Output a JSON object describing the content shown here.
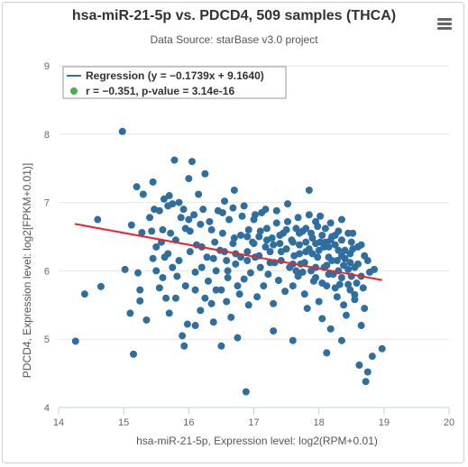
{
  "title": "hsa-miR-21-5p vs. PDCD4, 509 samples (THCA)",
  "subtitle": "Data Source: starBase v3.0 project",
  "menu_icon": "hamburger-menu-icon",
  "chart_data": {
    "type": "scatter",
    "title": "hsa-miR-21-5p vs. PDCD4, 509 samples (THCA)",
    "subtitle": "Data Source: starBase v3.0 project",
    "xlabel": "hsa-miR-21-5p, Expression level: log2(RPM+0.01)",
    "ylabel": "PDCD4, Expression level: log2[FPKM+0.01)]",
    "xlim": [
      14,
      20
    ],
    "ylim": [
      4,
      9
    ],
    "xticks": [
      "14",
      "15",
      "16",
      "17",
      "18",
      "19",
      "20"
    ],
    "yticks": [
      "4",
      "5",
      "6",
      "7",
      "8",
      "9"
    ],
    "grid": "horizontal",
    "legend_position": "top-left",
    "legend": {
      "regression_label": "Regression (y = −0.1739x + 9.1640)",
      "stats_label": "r = −0.351, p-value = 3.14e-16"
    },
    "colors": {
      "points": "#2f6f9f",
      "regression": "#e8262b",
      "stats_marker": "#4caf50"
    },
    "regression": {
      "slope": -0.1739,
      "intercept": 9.164,
      "x_range": [
        14.25,
        18.97
      ]
    },
    "points": [
      [
        14.26,
        4.97
      ],
      [
        14.4,
        5.66
      ],
      [
        14.6,
        6.75
      ],
      [
        14.65,
        5.77
      ],
      [
        14.98,
        8.04
      ],
      [
        15.1,
        5.38
      ],
      [
        15.15,
        4.78
      ],
      [
        15.02,
        6.02
      ],
      [
        15.12,
        6.67
      ],
      [
        15.2,
        7.23
      ],
      [
        15.3,
        7.12
      ],
      [
        15.22,
        5.97
      ],
      [
        15.25,
        5.72
      ],
      [
        15.25,
        5.56
      ],
      [
        15.28,
        6.56
      ],
      [
        15.4,
        6.78
      ],
      [
        15.43,
        6.58
      ],
      [
        15.45,
        7.3
      ],
      [
        15.47,
        6.9
      ],
      [
        15.5,
        6.0
      ],
      [
        15.55,
        5.75
      ],
      [
        15.58,
        6.42
      ],
      [
        15.6,
        6.6
      ],
      [
        15.63,
        6.2
      ],
      [
        15.65,
        5.6
      ],
      [
        15.68,
        6.95
      ],
      [
        15.7,
        7.1
      ],
      [
        15.72,
        6.55
      ],
      [
        15.75,
        6.05
      ],
      [
        15.78,
        7.62
      ],
      [
        15.8,
        6.45
      ],
      [
        15.82,
        5.92
      ],
      [
        15.85,
        7.0
      ],
      [
        15.88,
        6.78
      ],
      [
        15.9,
        5.05
      ],
      [
        15.93,
        4.9
      ],
      [
        15.95,
        6.62
      ],
      [
        15.98,
        5.22
      ],
      [
        16.0,
        7.35
      ],
      [
        16.02,
        6.58
      ],
      [
        16.05,
        7.6
      ],
      [
        16.08,
        6.82
      ],
      [
        16.1,
        5.72
      ],
      [
        16.12,
        6.38
      ],
      [
        16.15,
        7.12
      ],
      [
        16.18,
        5.42
      ],
      [
        16.2,
        6.05
      ],
      [
        16.22,
        6.9
      ],
      [
        16.25,
        7.42
      ],
      [
        16.28,
        6.2
      ],
      [
        16.3,
        5.85
      ],
      [
        16.32,
        6.72
      ],
      [
        16.35,
        5.52
      ],
      [
        16.38,
        5.25
      ],
      [
        16.4,
        6.42
      ],
      [
        16.42,
        6.0
      ],
      [
        16.45,
        6.88
      ],
      [
        16.48,
        6.3
      ],
      [
        16.5,
        5.72
      ],
      [
        16.52,
        6.55
      ],
      [
        16.55,
        7.02
      ],
      [
        16.58,
        6.15
      ],
      [
        16.6,
        5.9
      ],
      [
        16.62,
        6.75
      ],
      [
        16.65,
        5.32
      ],
      [
        16.68,
        6.4
      ],
      [
        16.7,
        7.18
      ],
      [
        16.72,
        6.1
      ],
      [
        16.75,
        5.02
      ],
      [
        16.78,
        5.66
      ],
      [
        16.8,
        6.52
      ],
      [
        16.82,
        6.8
      ],
      [
        16.85,
        5.88
      ],
      [
        16.88,
        4.23
      ],
      [
        16.9,
        6.28
      ],
      [
        16.92,
        6.6
      ],
      [
        16.95,
        5.97
      ],
      [
        16.98,
        6.42
      ],
      [
        17.0,
        6.75
      ],
      [
        17.02,
        6.2
      ],
      [
        17.05,
        5.62
      ],
      [
        17.08,
        6.5
      ],
      [
        17.1,
        6.05
      ],
      [
        17.12,
        6.85
      ],
      [
        17.15,
        5.78
      ],
      [
        17.18,
        6.35
      ],
      [
        17.2,
        6.62
      ],
      [
        17.22,
        5.95
      ],
      [
        17.25,
        6.28
      ],
      [
        17.28,
        6.48
      ],
      [
        17.3,
        5.52
      ],
      [
        17.32,
        6.12
      ],
      [
        17.35,
        6.7
      ],
      [
        17.38,
        5.86
      ],
      [
        17.4,
        6.4
      ],
      [
        17.42,
        6.15
      ],
      [
        17.45,
        6.55
      ],
      [
        17.48,
        5.7
      ],
      [
        17.5,
        6.32
      ],
      [
        17.52,
        6.98
      ],
      [
        17.55,
        6.05
      ],
      [
        17.58,
        6.45
      ],
      [
        17.6,
        5.78
      ],
      [
        17.62,
        6.22
      ],
      [
        17.65,
        6.62
      ],
      [
        17.68,
        5.92
      ],
      [
        17.7,
        6.38
      ],
      [
        17.72,
        6.1
      ],
      [
        17.75,
        6.58
      ],
      [
        17.78,
        5.66
      ],
      [
        17.8,
        6.28
      ],
      [
        17.82,
        5.45
      ],
      [
        17.85,
        7.18
      ],
      [
        17.88,
        6.0
      ],
      [
        17.9,
        6.48
      ],
      [
        17.92,
        5.85
      ],
      [
        17.95,
        6.72
      ],
      [
        17.98,
        6.2
      ],
      [
        18.0,
        5.55
      ],
      [
        18.02,
        6.42
      ],
      [
        18.05,
        5.3
      ],
      [
        18.08,
        6.05
      ],
      [
        18.1,
        6.62
      ],
      [
        18.12,
        5.78
      ],
      [
        18.15,
        6.35
      ],
      [
        18.18,
        5.15
      ],
      [
        18.2,
        6.15
      ],
      [
        18.22,
        5.95
      ],
      [
        18.25,
        6.52
      ],
      [
        18.28,
        5.62
      ],
      [
        18.3,
        6.3
      ],
      [
        18.32,
        5.8
      ],
      [
        18.35,
        6.45
      ],
      [
        18.38,
        5.5
      ],
      [
        18.4,
        6.18
      ],
      [
        18.42,
        5.35
      ],
      [
        18.45,
        6.02
      ],
      [
        18.48,
        5.72
      ],
      [
        18.5,
        5.92
      ],
      [
        18.52,
        6.32
      ],
      [
        18.55,
        5.58
      ],
      [
        18.58,
        5.82
      ],
      [
        18.6,
        6.1
      ],
      [
        18.62,
        4.62
      ],
      [
        18.65,
        5.2
      ],
      [
        18.68,
        5.75
      ],
      [
        18.7,
        5.45
      ],
      [
        18.72,
        4.38
      ],
      [
        18.75,
        4.52
      ],
      [
        18.78,
        5.98
      ],
      [
        18.82,
        4.75
      ],
      [
        18.97,
        4.86
      ],
      [
        18.12,
        4.8
      ],
      [
        17.3,
        5.12
      ],
      [
        16.5,
        4.9
      ],
      [
        15.7,
        5.38
      ],
      [
        15.35,
        5.28
      ],
      [
        16.1,
        5.2
      ],
      [
        17.6,
        4.98
      ],
      [
        18.35,
        4.98
      ],
      [
        15.55,
        6.88
      ],
      [
        15.62,
        7.05
      ],
      [
        15.75,
        6.98
      ],
      [
        15.92,
        6.9
      ],
      [
        16.0,
        6.75
      ],
      [
        16.18,
        6.68
      ],
      [
        16.35,
        6.6
      ],
      [
        16.52,
        6.85
      ],
      [
        16.68,
        6.92
      ],
      [
        16.85,
        6.95
      ],
      [
        17.02,
        6.82
      ],
      [
        17.18,
        6.9
      ],
      [
        17.35,
        6.88
      ],
      [
        17.52,
        6.72
      ],
      [
        17.68,
        6.78
      ],
      [
        17.85,
        6.82
      ],
      [
        18.02,
        6.8
      ],
      [
        18.18,
        6.7
      ],
      [
        18.35,
        6.75
      ],
      [
        18.52,
        6.55
      ],
      [
        15.5,
        6.35
      ],
      [
        15.68,
        6.25
      ],
      [
        15.85,
        6.15
      ],
      [
        16.02,
        6.28
      ],
      [
        16.2,
        6.35
      ],
      [
        16.38,
        6.18
      ],
      [
        16.55,
        6.28
      ],
      [
        16.72,
        6.25
      ],
      [
        16.9,
        6.15
      ],
      [
        17.08,
        6.22
      ],
      [
        17.25,
        6.12
      ],
      [
        17.42,
        6.28
      ],
      [
        17.6,
        6.1
      ],
      [
        17.78,
        6.12
      ],
      [
        17.95,
        6.05
      ],
      [
        18.12,
        6.08
      ],
      [
        18.3,
        6.0
      ],
      [
        18.48,
        6.12
      ],
      [
        18.65,
        5.92
      ],
      [
        18.7,
        6.22
      ],
      [
        17.9,
        6.25
      ],
      [
        18.0,
        6.3
      ],
      [
        18.1,
        6.42
      ],
      [
        18.2,
        6.5
      ],
      [
        18.3,
        6.58
      ],
      [
        18.4,
        6.3
      ],
      [
        18.5,
        6.42
      ],
      [
        18.6,
        6.35
      ],
      [
        18.75,
        6.15
      ],
      [
        18.85,
        6.02
      ],
      [
        17.7,
        6.55
      ],
      [
        17.8,
        6.62
      ],
      [
        17.95,
        6.4
      ],
      [
        18.05,
        6.52
      ],
      [
        18.15,
        6.2
      ],
      [
        18.25,
        6.38
      ],
      [
        18.35,
        6.22
      ],
      [
        18.45,
        6.55
      ],
      [
        18.55,
        6.05
      ],
      [
        18.65,
        6.38
      ],
      [
        17.65,
        6.0
      ],
      [
        17.75,
        5.98
      ],
      [
        17.85,
        6.32
      ],
      [
        17.95,
        5.9
      ],
      [
        18.05,
        5.82
      ],
      [
        18.15,
        5.95
      ],
      [
        18.25,
        5.75
      ],
      [
        18.35,
        5.9
      ],
      [
        18.45,
        5.8
      ],
      [
        18.55,
        5.65
      ],
      [
        17.6,
        6.42
      ],
      [
        17.7,
        6.25
      ],
      [
        17.8,
        6.42
      ],
      [
        17.88,
        6.55
      ],
      [
        17.98,
        6.65
      ],
      [
        18.08,
        6.35
      ],
      [
        18.18,
        6.45
      ],
      [
        18.28,
        6.15
      ],
      [
        18.38,
        6.08
      ],
      [
        18.48,
        6.25
      ],
      [
        16.6,
        6.0
      ],
      [
        16.7,
        6.48
      ],
      [
        16.8,
        6.2
      ],
      [
        16.9,
        6.5
      ],
      [
        17.0,
        6.4
      ],
      [
        17.1,
        6.58
      ],
      [
        17.2,
        6.45
      ],
      [
        17.3,
        6.38
      ],
      [
        17.4,
        6.52
      ],
      [
        17.5,
        6.6
      ],
      [
        15.45,
        6.18
      ],
      [
        15.6,
        5.9
      ],
      [
        15.8,
        5.6
      ],
      [
        15.95,
        5.78
      ],
      [
        16.1,
        5.98
      ],
      [
        16.25,
        5.6
      ],
      [
        16.42,
        5.72
      ],
      [
        16.58,
        5.55
      ],
      [
        16.75,
        5.78
      ],
      [
        16.92,
        5.5
      ]
    ]
  }
}
